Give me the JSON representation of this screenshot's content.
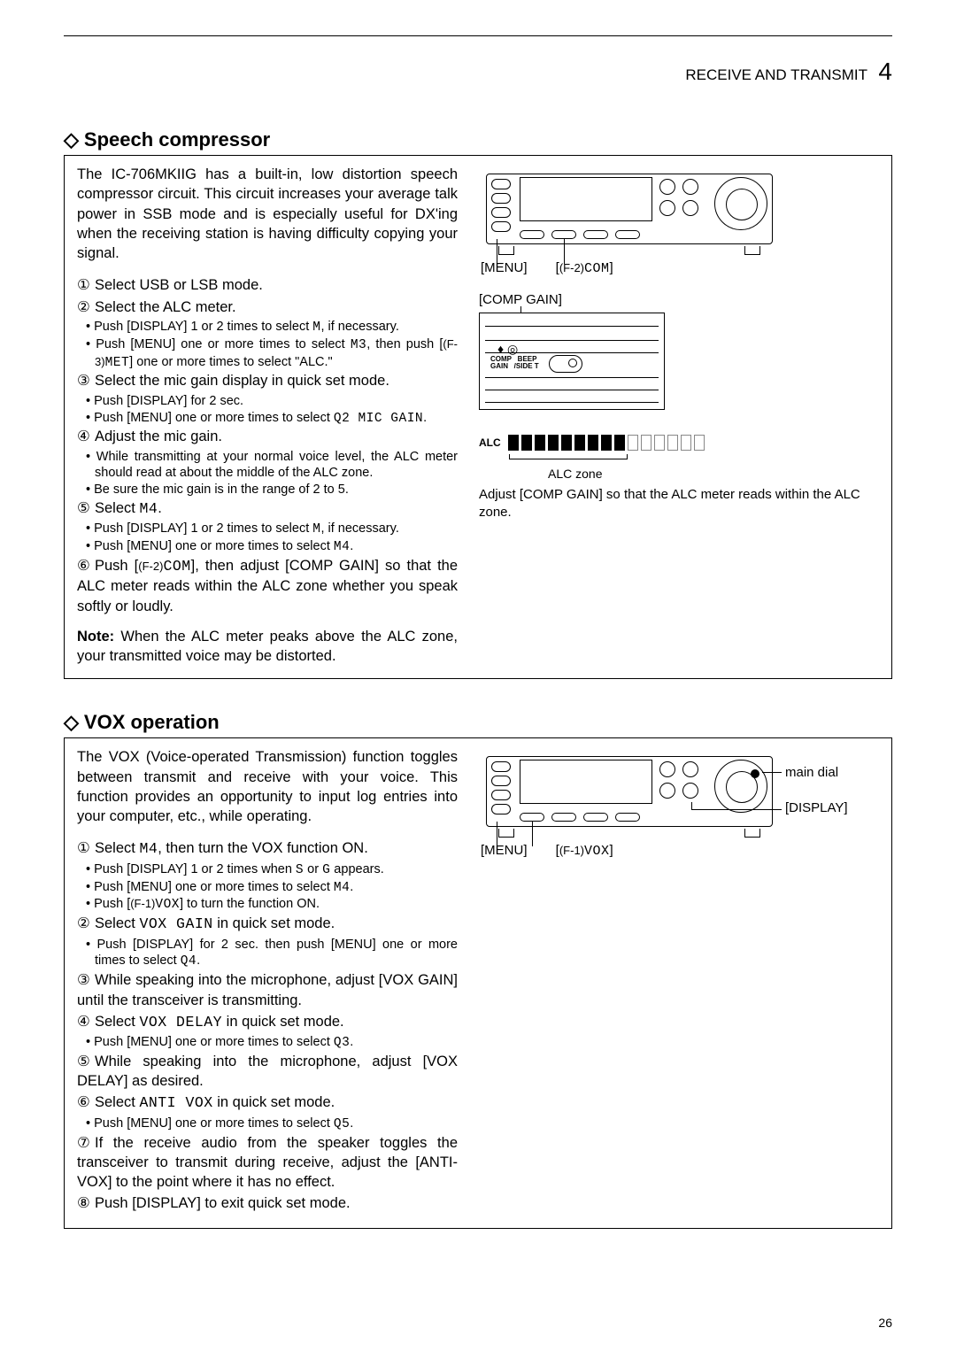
{
  "header": {
    "section": "RECEIVE AND TRANSMIT",
    "chapter": "4"
  },
  "pagenum": "26",
  "speech": {
    "title": "Speech compressor",
    "intro": "The IC-706MKIIG has a built-in, low distortion speech compressor circuit. This circuit increases your average talk power in SSB mode and is especially useful for DX'ing when the receiving station is having difficulty copying your signal.",
    "steps": {
      "s1": "Select USB or LSB mode.",
      "s2": "Select the ALC meter.",
      "s2a": "Push [DISPLAY] 1 or 2 times to select ",
      "s2a_m": "M",
      "s2a2": ", if necessary.",
      "s2b": "Push [MENU] one or more times to select ",
      "s2b_m": "M3",
      "s2b2": ", then push [",
      "s2b_f": "(F-3)",
      "s2b_m2": "MET",
      "s2b3": "] one or more times to select \"ALC.\"",
      "s3": "Select the mic gain display in quick set mode.",
      "s3a": "Push [DISPLAY] for 2 sec.",
      "s3b": "Push [MENU] one or more times to select ",
      "s3b_m": "Q2 MIC GAIN",
      "s3b2": ".",
      "s4": "Adjust the mic gain.",
      "s4a": "While transmitting at your normal voice level, the ALC meter should read at about the middle of the ALC zone.",
      "s4b": "Be sure the mic gain is in the range of 2 to 5.",
      "s5": "Select ",
      "s5_m": "M4",
      "s5b": ".",
      "s5a1": "Push [DISPLAY] 1 or 2 times to select ",
      "s5a1_m": "M",
      "s5a12": ", if necessary.",
      "s5a2": "Push [MENU] one or more times to select ",
      "s5a2_m": "M4",
      "s5a22": ".",
      "s6a": "Push [",
      "s6_f": "(F-2)",
      "s6_m": "COM",
      "s6b": "], then adjust [COMP GAIN] so that the ALC meter reads within the ALC zone whether you speak softly or loudly."
    },
    "note_label": "Note:",
    "note": " When the ALC meter peaks above the ALC zone, your transmitted voice may be distorted.",
    "labels": {
      "menu": "[MENU]",
      "f2": "(F-2)",
      "f2m": "COM",
      "compgain": "[COMP GAIN]",
      "meter_comp": "COMP",
      "meter_gain": "GAIN",
      "meter_beep": "BEEP",
      "meter_side": "/SIDE T",
      "alc": "ALC",
      "alc_zone": "ALC zone",
      "alc_note": "Adjust [COMP GAIN] so that the ALC meter reads within the ALC zone."
    },
    "alc_segments": {
      "filled": 9,
      "empty": 6
    }
  },
  "vox": {
    "title": "VOX operation",
    "intro": "The VOX (Voice-operated Transmission) function toggles between transmit and receive with your voice. This function provides an opportunity to input log entries into your computer, etc., while operating.",
    "steps": {
      "s1": "Select ",
      "s1_m": "M4",
      "s1b": ", then turn the VOX function ON.",
      "s1a1": "Push [DISPLAY] 1 or 2 times when ",
      "s1a1_m1": "S",
      "s1a1b": " or ",
      "s1a1_m2": "G",
      "s1a1c": " appears.",
      "s1a2": "Push [MENU] one or more times to select ",
      "s1a2_m": "M4",
      "s1a2b": ".",
      "s1a3": "Push [",
      "s1a3_f": "(F-1)",
      "s1a3_m": "VOX",
      "s1a3b": "] to turn the function ON.",
      "s2": "Select ",
      "s2_m": "VOX GAIN",
      "s2b": " in quick set mode.",
      "s2a": "Push [DISPLAY] for 2 sec. then push [MENU] one or more times to select ",
      "s2a_m": "Q4",
      "s2a2": ".",
      "s3": "While speaking into the microphone, adjust [VOX GAIN] until the transceiver is transmitting.",
      "s4": "Select ",
      "s4_m": "VOX DELAY",
      "s4b": " in quick set mode.",
      "s4a": "Push [MENU] one or more times to select ",
      "s4a_m": "Q3",
      "s4a2": ".",
      "s5": "While speaking into the microphone, adjust [VOX DELAY] as desired.",
      "s6": "Select ",
      "s6_m": "ANTI VOX",
      "s6b": " in quick set mode.",
      "s6a": "Push [MENU] one or more times to select ",
      "s6a_m": "Q5",
      "s6a2": ".",
      "s7": "If the receive audio from the speaker toggles the transceiver to transmit during receive, adjust the [ANTI-VOX] to the point where it has no effect.",
      "s8": "Push [DISPLAY] to exit quick set mode."
    },
    "labels": {
      "menu": "[MENU]",
      "f1": "(F-1)",
      "f1m": "VOX",
      "maindial": "main dial",
      "display": "[DISPLAY]"
    }
  },
  "colors": {
    "rule": "#000000",
    "bg": "#ffffff"
  }
}
